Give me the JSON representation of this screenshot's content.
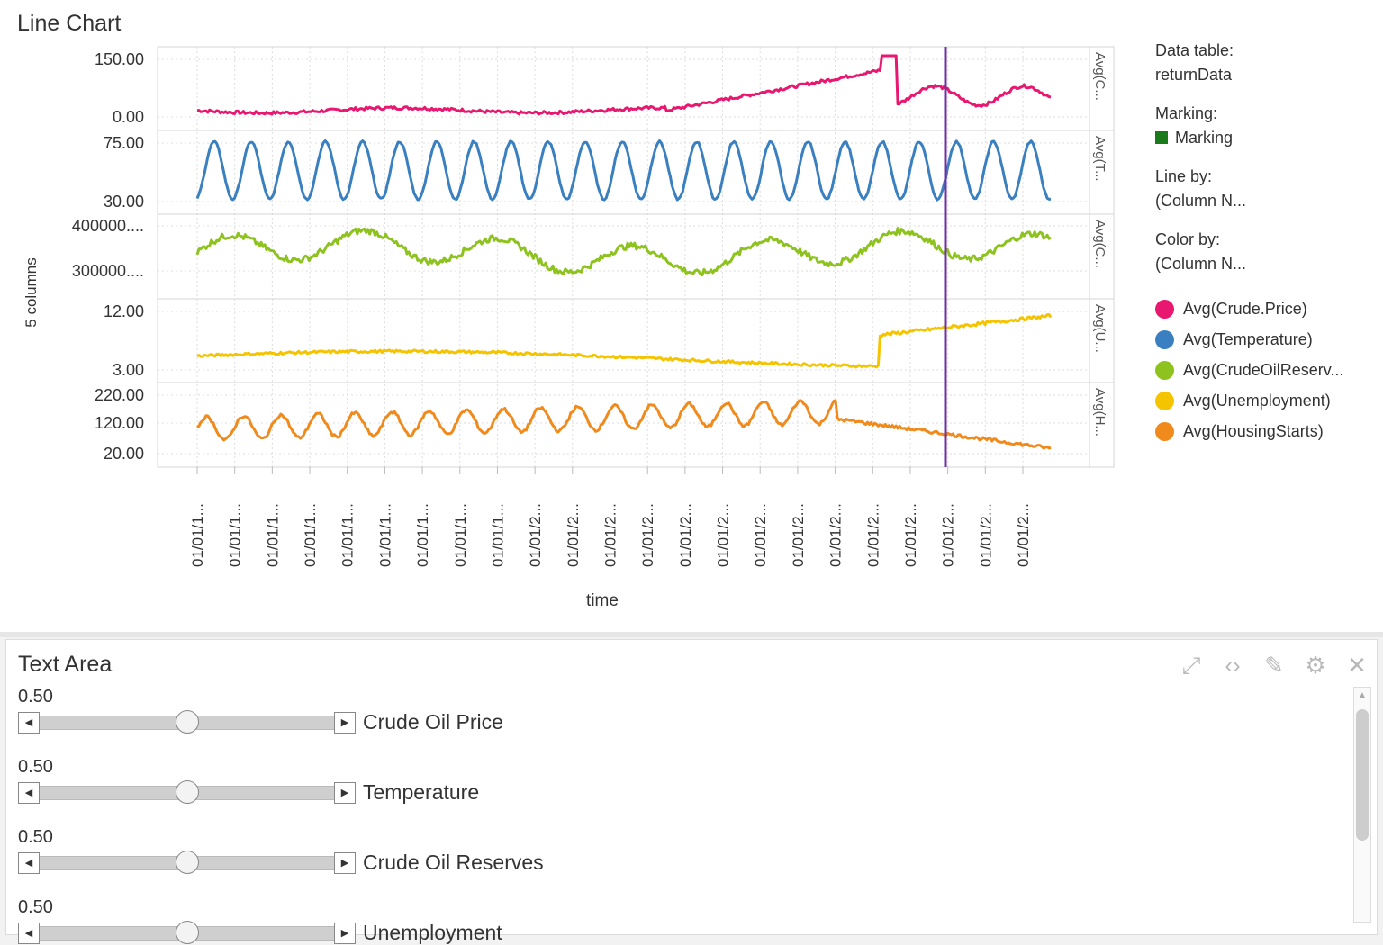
{
  "line_chart": {
    "title": "Line Chart",
    "y_axis_label": "5 columns",
    "x_axis_label": "time",
    "x_tick_label": "01/01/...",
    "x_ticks": [
      "01/01/1...",
      "01/01/1...",
      "01/01/1...",
      "01/01/1...",
      "01/01/1...",
      "01/01/1...",
      "01/01/1...",
      "01/01/1...",
      "01/01/1...",
      "01/01/2...",
      "01/01/2...",
      "01/01/2...",
      "01/01/2...",
      "01/01/2...",
      "01/01/2...",
      "01/01/2...",
      "01/01/2...",
      "01/01/2...",
      "01/01/2...",
      "01/01/2...",
      "01/01/2...",
      "01/01/2...",
      "01/01/2..."
    ],
    "marking_color": "#7030a0"
  },
  "legend": {
    "data_table_label": "Data table:",
    "data_table_value": "returnData",
    "marking_label": "Marking:",
    "marking_value": "Marking",
    "line_by_label": "Line by:",
    "line_by_value": "(Column N...",
    "color_by_label": "Color by:",
    "color_by_value": "(Column N...",
    "series": [
      {
        "label": "Avg(Crude.Price)",
        "color": "#e8176f"
      },
      {
        "label": "Avg(Temperature)",
        "color": "#3a80c0"
      },
      {
        "label": "Avg(CrudeOilReserv...",
        "color": "#8dc21f"
      },
      {
        "label": "Avg(Unemployment)",
        "color": "#f5c400"
      },
      {
        "label": "Avg(HousingStarts)",
        "color": "#f08a1c"
      }
    ]
  },
  "panels": [
    {
      "trellis_label": "Avg(C...",
      "ticks": [
        "150.00",
        "0.00"
      ]
    },
    {
      "trellis_label": "Avg(T...",
      "ticks": [
        "75.00",
        "30.00"
      ]
    },
    {
      "trellis_label": "Avg(C...",
      "ticks": [
        "400000....",
        "300000...."
      ]
    },
    {
      "trellis_label": "Avg(U...",
      "ticks": [
        "12.00",
        "3.00"
      ]
    },
    {
      "trellis_label": "Avg(H...",
      "ticks": [
        "220.00",
        "120.00",
        "20.00"
      ]
    }
  ],
  "text_area": {
    "title": "Text Area",
    "tool_icons": [
      "expand-icon",
      "code-icon",
      "edit-icon",
      "settings-icon",
      "close-icon"
    ],
    "sliders": [
      {
        "value": "0.50",
        "label": "Crude Oil Price",
        "fraction": 0.5
      },
      {
        "value": "0.50",
        "label": "Temperature",
        "fraction": 0.5
      },
      {
        "value": "0.50",
        "label": "Crude Oil Reserves",
        "fraction": 0.5
      },
      {
        "value": "0.50",
        "label": "Unemployment",
        "fraction": 0.5
      }
    ]
  }
}
